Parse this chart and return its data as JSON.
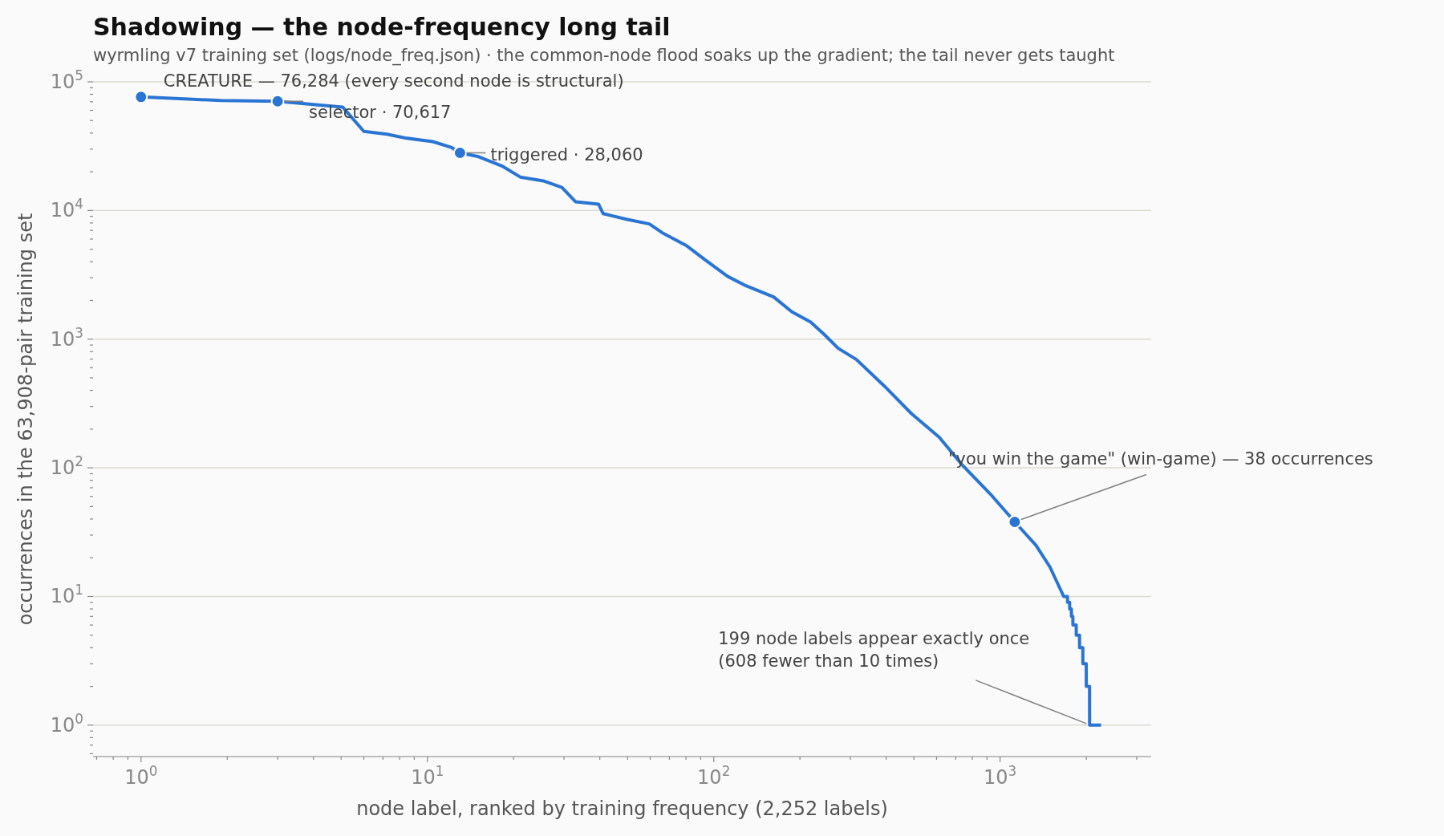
{
  "chart_data": {
    "type": "line",
    "title": "Shadowing — the node-frequency long tail",
    "subtitle": "wyrmling v7 training set (logs/node_freq.json) · the common-node flood soaks up the gradient; the tail never gets taught",
    "xlabel": "node label, ranked by training frequency (2,252 labels)",
    "ylabel": "occurrences in the 63,908-pair training set",
    "log": "xy",
    "grid": "y",
    "xlim": [
      0.68,
      3370
    ],
    "ylim": [
      0.57,
      100000
    ],
    "xticks": [
      {
        "value": 0.7,
        "label": null
      },
      {
        "value": 0.8,
        "label": null
      },
      {
        "value": 0.9,
        "label": null
      },
      {
        "value": 1,
        "label": "10$^{0}$"
      },
      {
        "value": 2,
        "label": null
      },
      {
        "value": 3,
        "label": null
      },
      {
        "value": 4,
        "label": null
      },
      {
        "value": 5,
        "label": null
      },
      {
        "value": 6,
        "label": null
      },
      {
        "value": 7,
        "label": null
      },
      {
        "value": 8,
        "label": null
      },
      {
        "value": 9,
        "label": null
      },
      {
        "value": 10,
        "label": "10$^{1}$"
      },
      {
        "value": 20,
        "label": null
      },
      {
        "value": 30,
        "label": null
      },
      {
        "value": 40,
        "label": null
      },
      {
        "value": 50,
        "label": null
      },
      {
        "value": 60,
        "label": null
      },
      {
        "value": 70,
        "label": null
      },
      {
        "value": 80,
        "label": null
      },
      {
        "value": 90,
        "label": null
      },
      {
        "value": 100,
        "label": "10$^{2}$"
      },
      {
        "value": 200,
        "label": null
      },
      {
        "value": 300,
        "label": null
      },
      {
        "value": 400,
        "label": null
      },
      {
        "value": 500,
        "label": null
      },
      {
        "value": 600,
        "label": null
      },
      {
        "value": 700,
        "label": null
      },
      {
        "value": 800,
        "label": null
      },
      {
        "value": 900,
        "label": null
      },
      {
        "value": 1000,
        "label": "10$^{3}$"
      },
      {
        "value": 2000,
        "label": null
      },
      {
        "value": 3000,
        "label": null
      }
    ],
    "yticks": [
      {
        "value": 0.6,
        "label": null
      },
      {
        "value": 0.7,
        "label": null
      },
      {
        "value": 0.8,
        "label": null
      },
      {
        "value": 0.9,
        "label": null
      },
      {
        "value": 1,
        "label": "10$^{0}$"
      },
      {
        "value": 2,
        "label": null
      },
      {
        "value": 3,
        "label": null
      },
      {
        "value": 4,
        "label": null
      },
      {
        "value": 5,
        "label": null
      },
      {
        "value": 6,
        "label": null
      },
      {
        "value": 7,
        "label": null
      },
      {
        "value": 8,
        "label": null
      },
      {
        "value": 9,
        "label": null
      },
      {
        "value": 10,
        "label": "10$^{1}$"
      },
      {
        "value": 20,
        "label": null
      },
      {
        "value": 30,
        "label": null
      },
      {
        "value": 40,
        "label": null
      },
      {
        "value": 50,
        "label": null
      },
      {
        "value": 60,
        "label": null
      },
      {
        "value": 70,
        "label": null
      },
      {
        "value": 80,
        "label": null
      },
      {
        "value": 90,
        "label": null
      },
      {
        "value": 100,
        "label": "10$^{2}$"
      },
      {
        "value": 200,
        "label": null
      },
      {
        "value": 300,
        "label": null
      },
      {
        "value": 400,
        "label": null
      },
      {
        "value": 500,
        "label": null
      },
      {
        "value": 600,
        "label": null
      },
      {
        "value": 700,
        "label": null
      },
      {
        "value": 800,
        "label": null
      },
      {
        "value": 900,
        "label": null
      },
      {
        "value": 1000,
        "label": "10$^{3}$"
      },
      {
        "value": 2000,
        "label": null
      },
      {
        "value": 3000,
        "label": null
      },
      {
        "value": 4000,
        "label": null
      },
      {
        "value": 5000,
        "label": null
      },
      {
        "value": 6000,
        "label": null
      },
      {
        "value": 7000,
        "label": null
      },
      {
        "value": 8000,
        "label": null
      },
      {
        "value": 9000,
        "label": null
      },
      {
        "value": 10000,
        "label": "10$^{4}$"
      },
      {
        "value": 20000,
        "label": null
      },
      {
        "value": 30000,
        "label": null
      },
      {
        "value": 40000,
        "label": null
      },
      {
        "value": 50000,
        "label": null
      },
      {
        "value": 60000,
        "label": null
      },
      {
        "value": 70000,
        "label": null
      },
      {
        "value": 80000,
        "label": null
      },
      {
        "value": 90000,
        "label": null
      },
      {
        "value": 100000,
        "label": "10$^{5}$"
      }
    ],
    "series": [
      {
        "color": "#2a75d3",
        "x": [
          1,
          1.9,
          3,
          5.06,
          6,
          7.22,
          8.37,
          10.45,
          12.1,
          13,
          15.1,
          18.2,
          21.1,
          25.4,
          29.5,
          32.9,
          39.6,
          41.1,
          49.5,
          59.6,
          66.6,
          80.1,
          92.9,
          111.7,
          129.6,
          161.9,
          187.6,
          217.7,
          243,
          272,
          315,
          393,
          491,
          613,
          738,
          922,
          1125,
          1334,
          1492,
          1668,
          1719,
          1720,
          1749,
          1750,
          1774,
          1775,
          1795,
          1796,
          1844,
          1845,
          1894,
          1895,
          1945,
          1946,
          1999,
          2000,
          2053,
          2054,
          2252
        ],
        "values": [
          76284,
          71600,
          70617,
          63700,
          41200,
          39200,
          36600,
          34300,
          31000,
          28060,
          26200,
          22200,
          18200,
          17000,
          15100,
          11700,
          11200,
          9450,
          8550,
          7860,
          6650,
          5350,
          4160,
          3080,
          2600,
          2130,
          1630,
          1360,
          1090,
          849,
          695,
          435,
          263,
          173,
          105,
          63,
          38,
          25,
          17,
          10,
          10,
          9,
          9,
          8,
          8,
          7,
          7,
          6,
          6,
          5,
          5,
          4,
          4,
          3,
          3,
          2,
          2,
          1,
          1
        ]
      },
      {
        "type": "scatter",
        "marker": "circle",
        "color": "#2a75d3",
        "x": [
          1,
          3,
          13,
          1125
        ],
        "values": [
          76284,
          70617,
          28060,
          38
        ]
      }
    ],
    "annotations": [
      {
        "text": "CREATURE — 76,284 (every second node is structural)",
        "x": 1,
        "y": 76284
      },
      {
        "text": "selector · 70,617",
        "x": 3,
        "y": 70617
      },
      {
        "text": "triggered · 28,060",
        "x": 13,
        "y": 28060
      },
      {
        "text": "\"you win the game\" (win-game) — 38 occurrences",
        "x": 1125,
        "y": 38
      },
      {
        "text": "199 node labels appear exactly once\n(608 fewer than 10 times)",
        "x": 2054,
        "y": 1
      }
    ]
  }
}
